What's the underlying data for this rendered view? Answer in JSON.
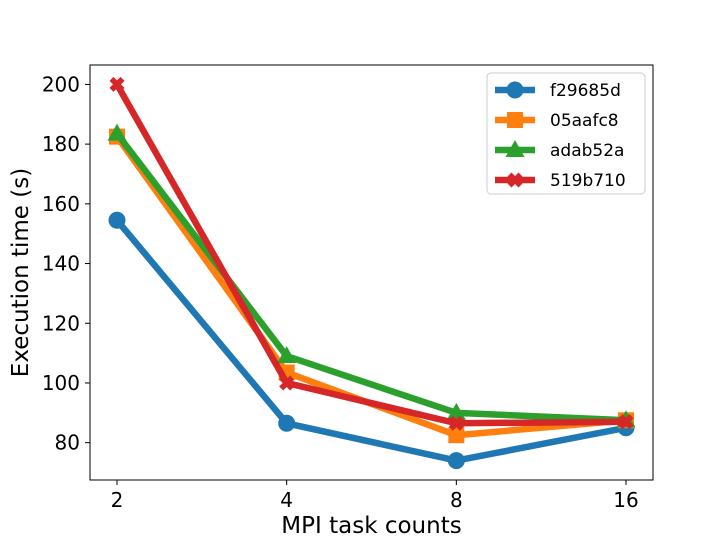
{
  "chart_data": {
    "type": "line",
    "title": "",
    "xlabel": "MPI task counts",
    "ylabel": "Execution time (s)",
    "x_scale": "log2",
    "categories": [
      "2",
      "4",
      "8",
      "16"
    ],
    "x": [
      2,
      4,
      8,
      16
    ],
    "ylim": [
      67.5,
      206.5
    ],
    "yticks": [
      "80",
      "100",
      "120",
      "140",
      "160",
      "180",
      "200"
    ],
    "ytick_values": [
      80,
      100,
      120,
      140,
      160,
      180,
      200
    ],
    "grid": false,
    "legend_position": "top-right",
    "series": [
      {
        "name": "f29685d",
        "color": "#1f77b4",
        "marker": "circle",
        "values": [
          154.5,
          86.5,
          74.0,
          85.0
        ]
      },
      {
        "name": "05aafc8",
        "color": "#ff7f0e",
        "marker": "square",
        "values": [
          182.5,
          103.5,
          82.5,
          87.5
        ]
      },
      {
        "name": "adab52a",
        "color": "#2ca02c",
        "marker": "triangle",
        "values": [
          183.5,
          109.0,
          90.0,
          87.5
        ]
      },
      {
        "name": "519b710",
        "color": "#d62728",
        "marker": "x",
        "values": [
          200.0,
          100.0,
          86.5,
          87.0
        ]
      }
    ]
  }
}
